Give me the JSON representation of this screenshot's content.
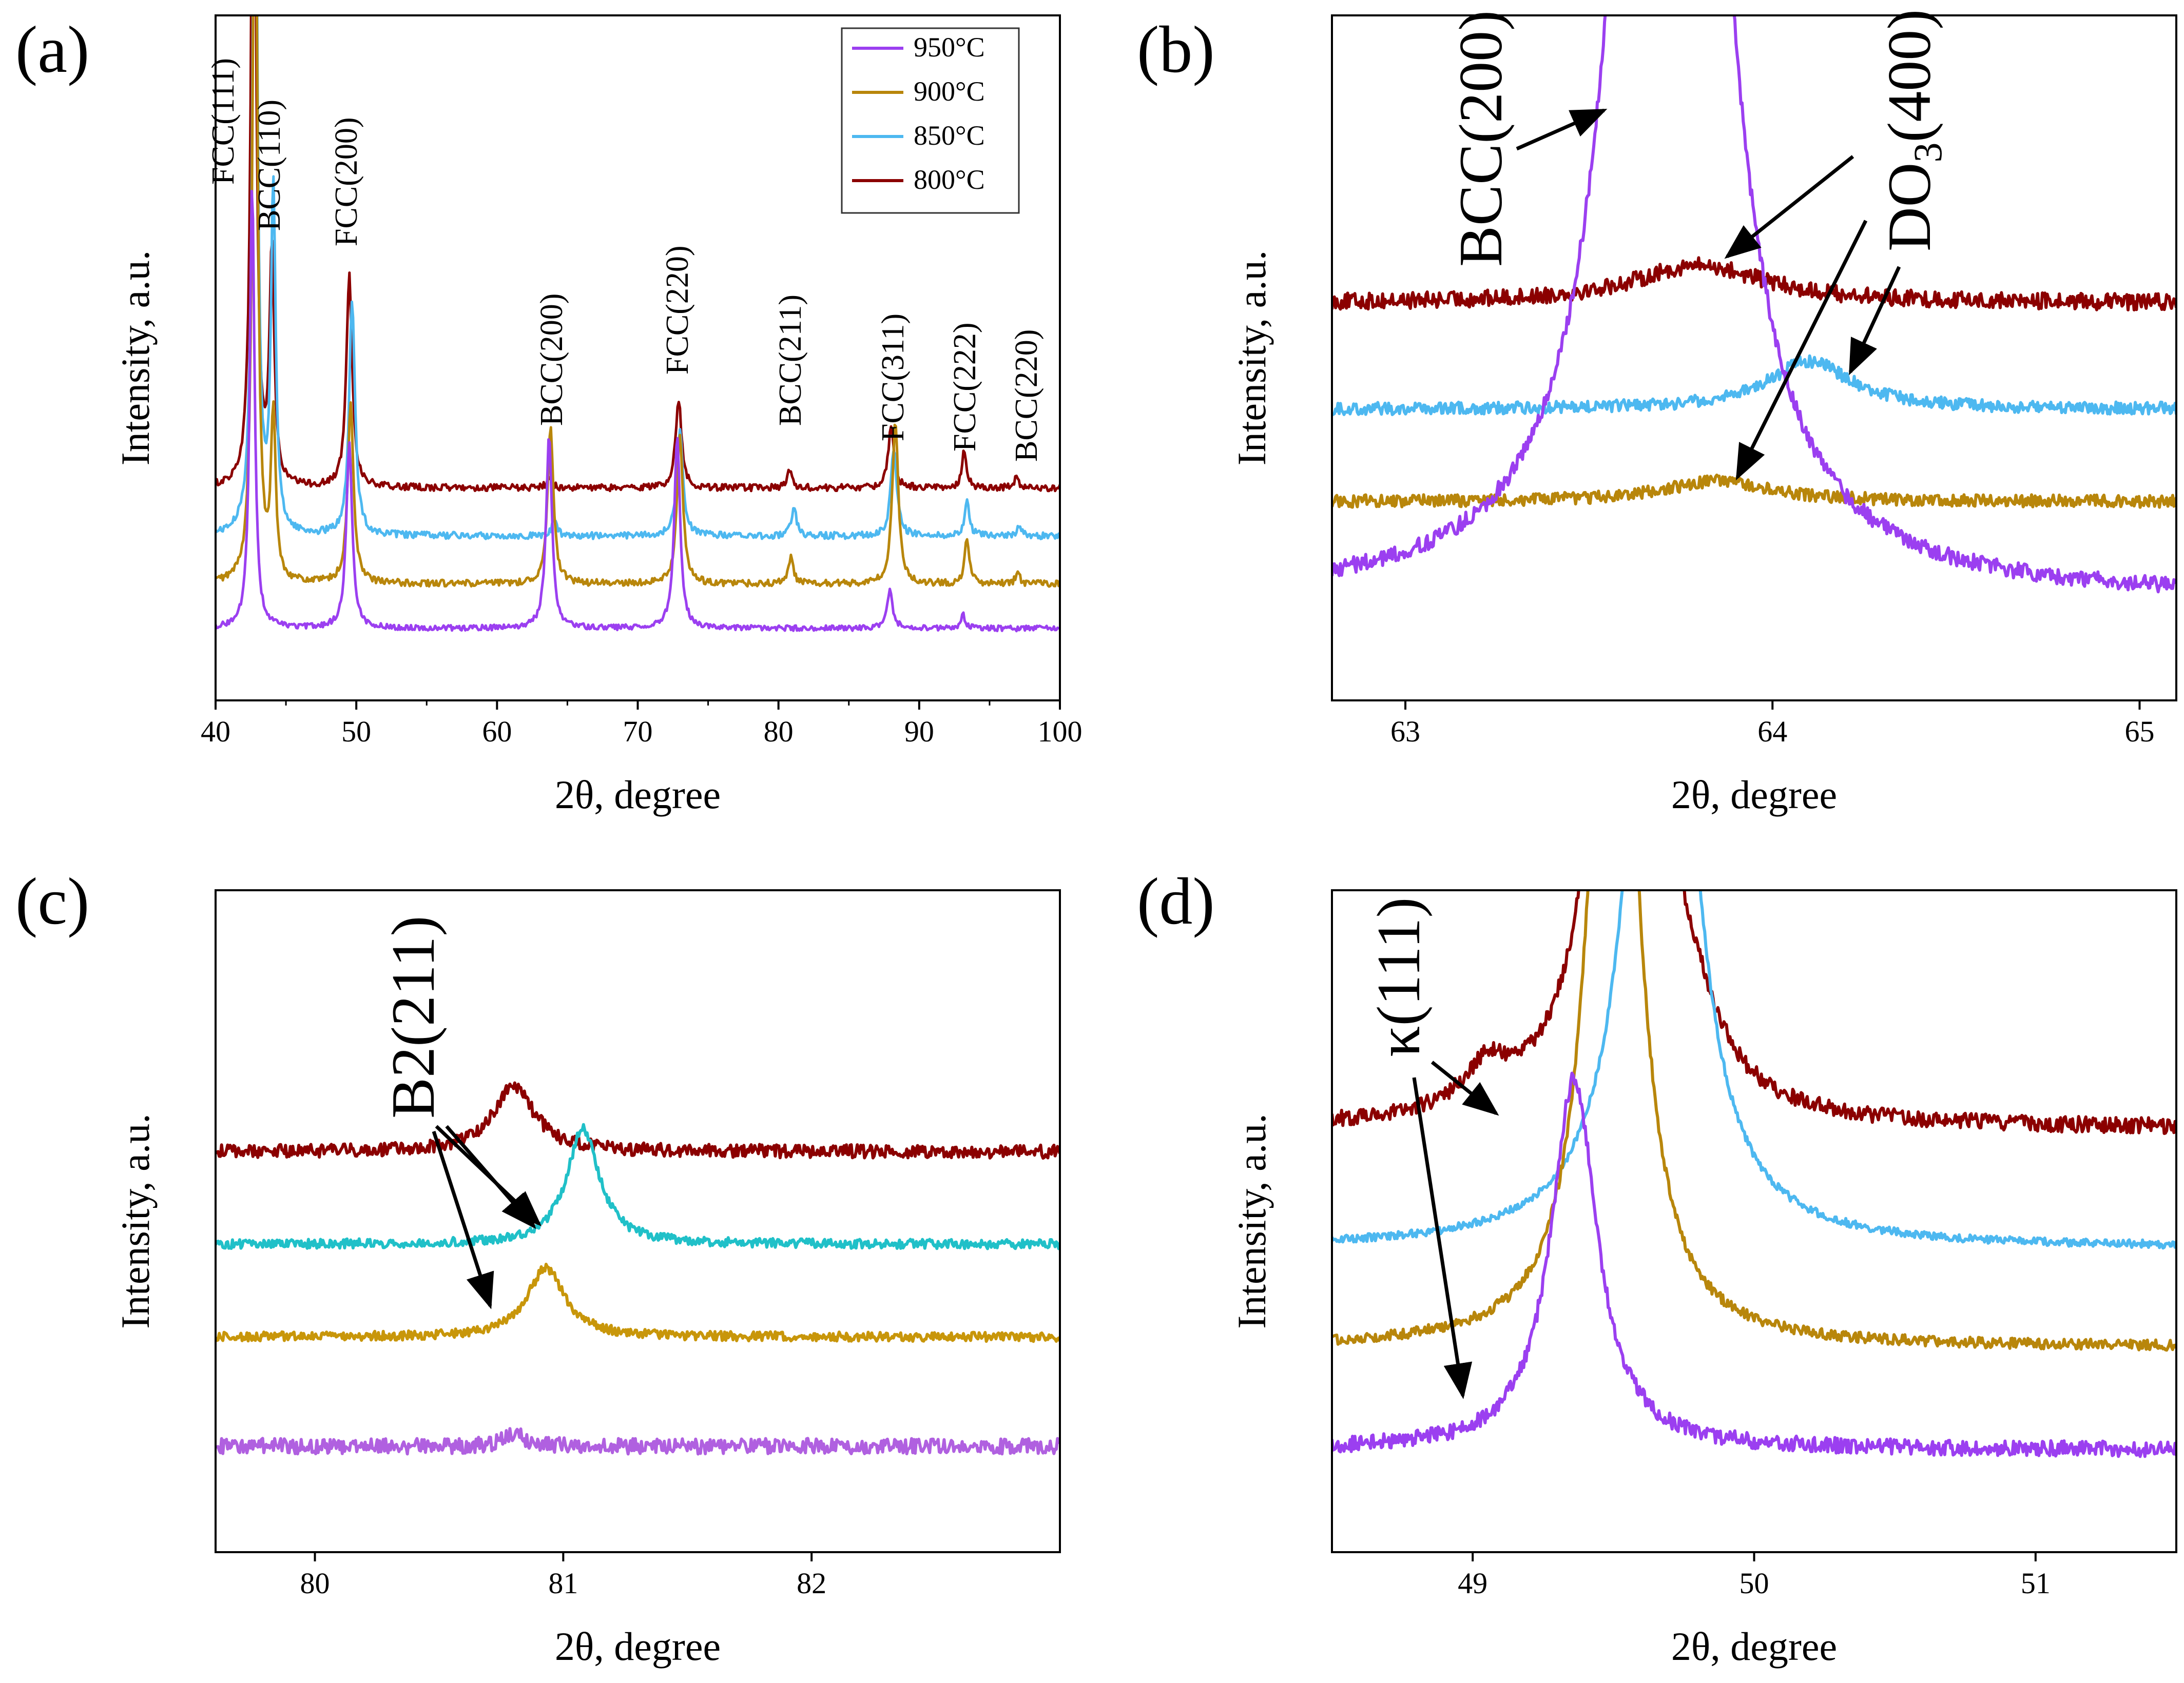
{
  "figure": {
    "panels_order": [
      "a",
      "b",
      "c",
      "d"
    ]
  },
  "chart_data": [
    {
      "id": "a",
      "type": "line",
      "panel_label": "(a)",
      "xlabel": "2θ, degree",
      "ylabel": "Intensity, a.u.",
      "xlim": [
        40,
        100
      ],
      "x_ticks": [
        40,
        50,
        60,
        70,
        80,
        90,
        100
      ],
      "ylim": [
        0,
        10
      ],
      "legend": {
        "position": "top-right",
        "entries": [
          {
            "label": "950°C",
            "color": "#9b3ff0"
          },
          {
            "label": "900°C",
            "color": "#b8860b"
          },
          {
            "label": "850°C",
            "color": "#4db8f0"
          },
          {
            "label": "800°C",
            "color": "#8b0000"
          }
        ]
      },
      "series": [
        {
          "name": "800°C",
          "color": "#8b0000",
          "baseline": 3.1,
          "noise": 0.05,
          "peaks": [
            [
              42.7,
              12,
              0.2
            ],
            [
              44.0,
              3.4,
              0.2
            ],
            [
              49.5,
              3.1,
              0.25
            ],
            [
              63.7,
              0.12,
              0.25
            ],
            [
              72.9,
              1.3,
              0.25
            ],
            [
              80.8,
              0.25,
              0.2
            ],
            [
              88.0,
              0.85,
              0.25
            ],
            [
              93.2,
              0.55,
              0.2
            ],
            [
              96.9,
              0.15,
              0.2
            ]
          ]
        },
        {
          "name": "850°C",
          "color": "#4db8f0",
          "baseline": 2.4,
          "noise": 0.05,
          "peaks": [
            [
              42.8,
              12,
              0.2
            ],
            [
              44.1,
              5.0,
              0.2
            ],
            [
              49.7,
              3.4,
              0.25
            ],
            [
              64.1,
              0.25,
              0.2
            ],
            [
              73.0,
              1.6,
              0.25
            ],
            [
              81.1,
              0.45,
              0.2
            ],
            [
              88.2,
              1.3,
              0.25
            ],
            [
              93.4,
              0.5,
              0.2
            ],
            [
              97.1,
              0.15,
              0.2
            ]
          ]
        },
        {
          "name": "900°C",
          "color": "#b8860b",
          "baseline": 1.7,
          "noise": 0.05,
          "peaks": [
            [
              42.8,
              12,
              0.2
            ],
            [
              44.1,
              2.4,
              0.2
            ],
            [
              49.6,
              2.6,
              0.25
            ],
            [
              63.8,
              2.3,
              0.25
            ],
            [
              73.0,
              2.2,
              0.25
            ],
            [
              80.9,
              0.4,
              0.2
            ],
            [
              88.3,
              2.4,
              0.25
            ],
            [
              93.4,
              0.65,
              0.2
            ],
            [
              97.0,
              0.15,
              0.2
            ]
          ]
        },
        {
          "name": "950°C",
          "color": "#9b3ff0",
          "baseline": 1.05,
          "noise": 0.04,
          "peaks": [
            [
              42.6,
              6.5,
              0.2
            ],
            [
              49.5,
              2.7,
              0.25
            ],
            [
              63.7,
              2.8,
              0.25
            ],
            [
              72.8,
              2.8,
              0.25
            ],
            [
              87.9,
              0.55,
              0.25
            ],
            [
              93.1,
              0.2,
              0.2
            ]
          ]
        }
      ],
      "annotations": [
        {
          "text": "FCC(111)",
          "x": 42.7
        },
        {
          "text": "BCC(110)",
          "x": 44.4
        },
        {
          "text": "FCC(200)",
          "x": 49.5
        },
        {
          "text": "BCC(200)",
          "x": 63.8
        },
        {
          "text": "FCC(220)",
          "x": 72.9
        },
        {
          "text": "BCC(211)",
          "x": 81.1
        },
        {
          "text": "FCC(311)",
          "x": 88.1
        },
        {
          "text": "FCC(222)",
          "x": 93.2
        },
        {
          "text": "BCC(220)",
          "x": 97.0
        }
      ]
    },
    {
      "id": "b",
      "type": "line",
      "panel_label": "(b)",
      "xlabel": "2θ, degree",
      "ylabel": "Intensity, a.u.",
      "xlim": [
        62.8,
        65.1
      ],
      "x_ticks": [
        63,
        64,
        65
      ],
      "ylim": [
        0,
        10
      ],
      "series": [
        {
          "name": "800°C",
          "color": "#8b0000",
          "baseline": 5.8,
          "noise": 0.12,
          "peaks": [
            [
              63.8,
              0.55,
              0.22
            ]
          ]
        },
        {
          "name": "850°C",
          "color": "#4db8f0",
          "baseline": 4.25,
          "noise": 0.09,
          "peaks": [
            [
              64.1,
              0.7,
              0.14
            ]
          ]
        },
        {
          "name": "900°C",
          "color": "#b8860b",
          "baseline": 2.9,
          "noise": 0.09,
          "peaks": [
            [
              63.85,
              0.3,
              0.18
            ]
          ]
        },
        {
          "name": "950°C",
          "color": "#9b3ff0",
          "baseline": 1.5,
          "noise": 0.12,
          "peaks": [
            [
              63.72,
              30,
              0.11
            ]
          ]
        }
      ],
      "labels": [
        {
          "text": "BCC(200)"
        },
        {
          "text": "DO",
          "sub": "3",
          "suffix": "(400)"
        }
      ]
    },
    {
      "id": "c",
      "type": "line",
      "panel_label": "(c)",
      "xlabel": "2θ, degree",
      "ylabel": "Intensity, a.u.",
      "xlim": [
        79.6,
        83.0
      ],
      "x_ticks": [
        80,
        81,
        82
      ],
      "ylim": [
        0,
        10
      ],
      "series": [
        {
          "name": "800°C",
          "color": "#8b0000",
          "baseline": 6.05,
          "noise": 0.1,
          "peaks": [
            [
              80.8,
              1.0,
              0.1
            ]
          ]
        },
        {
          "name": "850°C",
          "color": "#20c0c8",
          "baseline": 4.65,
          "noise": 0.07,
          "peaks": [
            [
              81.08,
              1.75,
              0.08
            ]
          ]
        },
        {
          "name": "900°C",
          "color": "#c8960a",
          "baseline": 3.25,
          "noise": 0.07,
          "peaks": [
            [
              80.93,
              1.05,
              0.09
            ]
          ]
        },
        {
          "name": "950°C",
          "color": "#b060e0",
          "baseline": 1.6,
          "noise": 0.12,
          "peaks": [
            [
              80.8,
              0.2,
              0.05
            ]
          ]
        }
      ],
      "labels": [
        {
          "text": "B2(211)"
        }
      ]
    },
    {
      "id": "d",
      "type": "line",
      "panel_label": "(d)",
      "xlabel": "2θ, degree",
      "ylabel": "Intensity, a.u.",
      "xlim": [
        48.5,
        51.5
      ],
      "x_ticks": [
        49,
        50,
        51
      ],
      "ylim": [
        0,
        10
      ],
      "series": [
        {
          "name": "800°C",
          "color": "#8b0000",
          "baseline": 6.4,
          "noise": 0.12,
          "peaks": [
            [
              49.55,
              14,
              0.1
            ],
            [
              49.05,
              0.6,
              0.1
            ],
            [
              49.78,
              0.8,
              0.12
            ]
          ]
        },
        {
          "name": "850°C",
          "color": "#4db8f0",
          "baseline": 4.6,
          "noise": 0.06,
          "peaks": [
            [
              49.67,
              14,
              0.11
            ]
          ]
        },
        {
          "name": "900°C",
          "color": "#b8860b",
          "baseline": 3.1,
          "noise": 0.08,
          "peaks": [
            [
              49.5,
              14,
              0.09
            ]
          ]
        },
        {
          "name": "950°C",
          "color": "#9b3ff0",
          "baseline": 1.55,
          "noise": 0.12,
          "peaks": [
            [
              49.36,
              5.6,
              0.1
            ]
          ]
        }
      ],
      "labels": [
        {
          "text": "κ(111)"
        }
      ]
    }
  ]
}
